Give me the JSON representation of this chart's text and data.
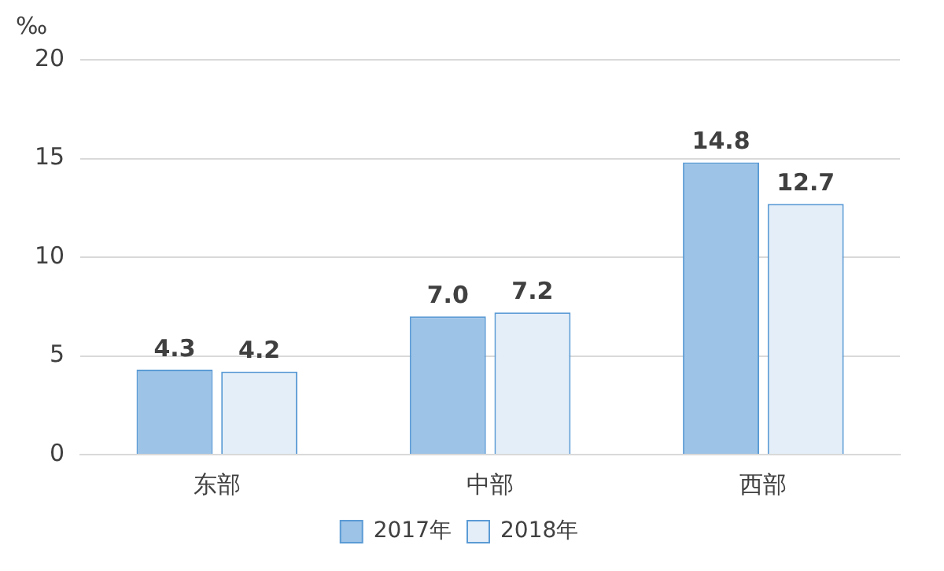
{
  "chart_data": {
    "type": "bar",
    "ylabel": "‰",
    "categories": [
      "东部",
      "中部",
      "西部"
    ],
    "series": [
      {
        "name": "2017年",
        "color": "#9dc3e6",
        "values": [
          4.3,
          7.0,
          14.8
        ],
        "value_labels": [
          "4.3",
          "7.0",
          "14.8"
        ]
      },
      {
        "name": "2018年",
        "color": "#e4eef8",
        "values": [
          4.2,
          7.2,
          12.7
        ],
        "value_labels": [
          "4.2",
          "7.2",
          "12.7"
        ]
      }
    ],
    "ylim": [
      0,
      20
    ],
    "yticks": [
      0,
      5,
      10,
      15,
      20
    ],
    "grid": "y",
    "legend": "bottom"
  }
}
